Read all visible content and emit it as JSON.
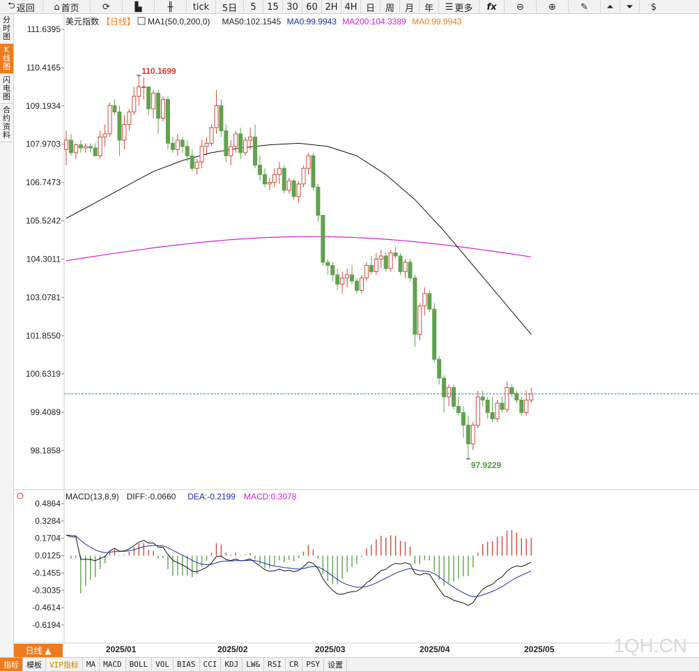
{
  "toolbar": {
    "back": "返回",
    "home": "首页",
    "tick": "tick",
    "periods": [
      "5日",
      "5",
      "15",
      "30",
      "60",
      "2H",
      "4H",
      "日",
      "周",
      "月",
      "年"
    ],
    "more": "更多"
  },
  "sidebar": {
    "items": [
      {
        "label": "分时图"
      },
      {
        "label": "K线图",
        "active": true
      },
      {
        "label": "闪电图"
      },
      {
        "label": "合约资料"
      }
    ]
  },
  "header": {
    "symbol": "美元指数",
    "period_tag": "【日线】",
    "ma_label": "MA1(50,0,200,0)",
    "ma50": "MA50:102.1545",
    "ma0": "MA0:99.9943",
    "ma200": "MA200:104.3389",
    "ma0b": "MA0:99.9943"
  },
  "macd_header": {
    "name": "MACD(13,8,9)",
    "diff": "DIFF:-0.0660",
    "dea": "DEA:-0.2199",
    "macd": "MACD:0.3078"
  },
  "colors": {
    "up": "#cd4a3b",
    "down": "#62a14f",
    "ma50": "#111111",
    "ma200": "#d21fd2",
    "dea": "#1f2fa0",
    "diff": "#111111",
    "price_line": "#2b83a8",
    "accent": "#f07b1e"
  },
  "chart_data": {
    "type": "candlestick",
    "price_axis_ticks": [
      "111.6395",
      "110.4165",
      "109.1934",
      "107.9703",
      "106.7473",
      "105.5242",
      "104.3011",
      "103.0781",
      "101.8550",
      "100.6319",
      "99.4089",
      "98.1858"
    ],
    "macd_axis_ticks": [
      "0.4864",
      "0.3284",
      "0.1704",
      "0.0125",
      "-0.1455",
      "-0.3035",
      "-0.4614",
      "-0.6194"
    ],
    "x_ticks": [
      "2025/01",
      "2025/02",
      "2025/03",
      "2025/04",
      "2025/05"
    ],
    "annotations": {
      "high": "110.1699",
      "low": "97.9229"
    },
    "last_price": 99.9943,
    "candles": [
      [
        107.8,
        108.4,
        107.3,
        108.1
      ],
      [
        108.1,
        108.3,
        107.6,
        107.7
      ],
      [
        107.7,
        108.0,
        107.5,
        107.95
      ],
      [
        107.95,
        108.1,
        107.7,
        107.85
      ],
      [
        107.85,
        108.0,
        107.7,
        107.9
      ],
      [
        107.9,
        108.0,
        107.7,
        107.85
      ],
      [
        107.85,
        108.0,
        107.7,
        107.6
      ],
      [
        107.6,
        108.4,
        107.5,
        108.2
      ],
      [
        108.2,
        108.6,
        107.9,
        108.3
      ],
      [
        108.3,
        109.3,
        108.2,
        109.2
      ],
      [
        109.2,
        109.4,
        108.9,
        109.0
      ],
      [
        109.0,
        109.2,
        107.6,
        108.1
      ],
      [
        108.1,
        108.9,
        107.8,
        108.6
      ],
      [
        108.6,
        109.1,
        108.4,
        109.0
      ],
      [
        109.0,
        109.8,
        108.9,
        109.5
      ],
      [
        109.5,
        110.17,
        109.2,
        109.8
      ],
      [
        109.8,
        110.1,
        109.4,
        109.8
      ],
      [
        109.8,
        109.8,
        108.9,
        109.1
      ],
      [
        109.1,
        109.7,
        108.8,
        109.6
      ],
      [
        109.6,
        109.7,
        108.3,
        108.8
      ],
      [
        108.8,
        109.5,
        108.7,
        109.4
      ],
      [
        109.4,
        109.5,
        107.8,
        108.0
      ],
      [
        108.0,
        108.2,
        107.7,
        107.8
      ],
      [
        107.8,
        108.3,
        107.6,
        108.1
      ],
      [
        108.1,
        108.2,
        107.7,
        107.9
      ],
      [
        107.9,
        108.1,
        107.4,
        107.6
      ],
      [
        107.6,
        107.8,
        107.1,
        107.2
      ],
      [
        107.2,
        107.5,
        107.0,
        107.4
      ],
      [
        107.4,
        108.1,
        107.2,
        107.9
      ],
      [
        107.9,
        108.2,
        107.6,
        108.0
      ],
      [
        108.0,
        108.6,
        107.9,
        108.5
      ],
      [
        108.5,
        109.7,
        108.3,
        109.2
      ],
      [
        109.2,
        109.4,
        108.2,
        108.4
      ],
      [
        108.4,
        108.6,
        107.4,
        107.6
      ],
      [
        107.6,
        108.1,
        107.3,
        107.9
      ],
      [
        107.9,
        108.4,
        107.7,
        108.3
      ],
      [
        108.3,
        108.5,
        107.5,
        107.7
      ],
      [
        107.7,
        108.2,
        107.6,
        108.1
      ],
      [
        108.1,
        108.5,
        107.8,
        108.2
      ],
      [
        108.2,
        108.6,
        107.2,
        107.3
      ],
      [
        107.3,
        107.6,
        106.8,
        107.0
      ],
      [
        107.0,
        107.2,
        106.6,
        106.7
      ],
      [
        106.7,
        106.9,
        106.5,
        106.75
      ],
      [
        106.75,
        107.2,
        106.6,
        107.0
      ],
      [
        107.0,
        107.4,
        106.7,
        107.2
      ],
      [
        107.2,
        107.3,
        106.4,
        106.5
      ],
      [
        106.5,
        106.9,
        106.4,
        106.8
      ],
      [
        106.8,
        106.85,
        106.2,
        106.3
      ],
      [
        106.3,
        106.8,
        106.1,
        106.7
      ],
      [
        106.7,
        107.3,
        106.6,
        107.2
      ],
      [
        107.2,
        107.7,
        107.0,
        107.6
      ],
      [
        107.6,
        107.7,
        106.5,
        106.6
      ],
      [
        106.6,
        106.7,
        105.5,
        105.7
      ],
      [
        105.7,
        105.7,
        104.1,
        104.2
      ],
      [
        104.2,
        104.3,
        103.8,
        104.1
      ],
      [
        104.1,
        104.2,
        103.6,
        103.8
      ],
      [
        103.8,
        104.0,
        103.3,
        103.5
      ],
      [
        103.5,
        103.9,
        103.2,
        103.7
      ],
      [
        103.7,
        104.0,
        103.4,
        103.8
      ],
      [
        103.8,
        104.1,
        103.5,
        103.6
      ],
      [
        103.6,
        103.7,
        103.2,
        103.3
      ],
      [
        103.3,
        103.8,
        103.2,
        103.7
      ],
      [
        103.7,
        104.2,
        103.6,
        104.1
      ],
      [
        104.1,
        104.4,
        103.8,
        103.9
      ],
      [
        103.9,
        104.5,
        103.8,
        104.3
      ],
      [
        104.3,
        104.6,
        104.0,
        104.4
      ],
      [
        104.4,
        104.5,
        103.9,
        104.0
      ],
      [
        104.0,
        104.6,
        103.9,
        104.5
      ],
      [
        104.5,
        104.7,
        104.3,
        104.4
      ],
      [
        104.4,
        104.5,
        103.8,
        103.9
      ],
      [
        103.9,
        104.3,
        103.7,
        104.2
      ],
      [
        104.2,
        104.3,
        103.6,
        103.7
      ],
      [
        103.7,
        103.8,
        101.5,
        101.9
      ],
      [
        101.9,
        102.9,
        101.7,
        102.8
      ],
      [
        102.8,
        103.4,
        102.5,
        103.2
      ],
      [
        103.2,
        103.3,
        102.6,
        102.7
      ],
      [
        102.7,
        102.9,
        101.0,
        101.1
      ],
      [
        101.1,
        101.2,
        100.3,
        100.5
      ],
      [
        100.5,
        100.6,
        99.4,
        99.9
      ],
      [
        99.9,
        100.3,
        99.6,
        100.2
      ],
      [
        100.2,
        100.3,
        99.5,
        99.6
      ],
      [
        99.6,
        99.9,
        99.3,
        99.4
      ],
      [
        99.4,
        99.6,
        98.6,
        99.0
      ],
      [
        99.0,
        99.3,
        97.92,
        98.4
      ],
      [
        98.4,
        99.1,
        98.2,
        99.0
      ],
      [
        99.0,
        100.1,
        98.9,
        99.9
      ],
      [
        99.9,
        100.1,
        99.6,
        99.8
      ],
      [
        99.8,
        99.9,
        99.2,
        99.4
      ],
      [
        99.4,
        99.9,
        99.1,
        99.2
      ],
      [
        99.2,
        99.8,
        99.1,
        99.7
      ],
      [
        99.7,
        99.9,
        99.4,
        99.5
      ],
      [
        99.5,
        100.4,
        99.4,
        100.2
      ],
      [
        100.2,
        100.3,
        99.9,
        100.0
      ],
      [
        100.0,
        100.1,
        99.7,
        99.8
      ],
      [
        99.8,
        99.9,
        99.3,
        99.4
      ],
      [
        99.4,
        100.1,
        99.3,
        99.8
      ],
      [
        99.8,
        100.2,
        99.7,
        99.99
      ]
    ]
  },
  "tabs": [
    {
      "label": "指标",
      "sel": true
    },
    {
      "label": "模板"
    },
    {
      "label": "VIP指标",
      "vip": true
    },
    {
      "label": "MA"
    },
    {
      "label": "MACD"
    },
    {
      "label": "BOLL"
    },
    {
      "label": "VOL"
    },
    {
      "label": "BIAS"
    },
    {
      "label": "CCI"
    },
    {
      "label": "KDJ"
    },
    {
      "label": "LW&"
    },
    {
      "label": "RSI"
    },
    {
      "label": "CR"
    },
    {
      "label": "PSY"
    },
    {
      "label": "设置"
    }
  ],
  "day_button": "日线 ▲",
  "watermark": "1QH.CN"
}
